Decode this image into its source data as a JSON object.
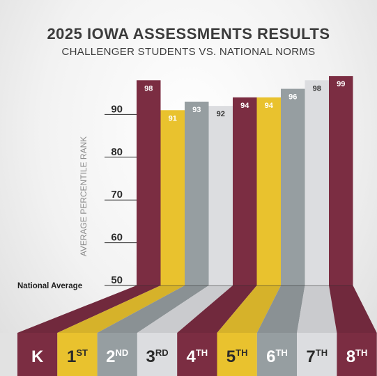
{
  "chart_data": {
    "type": "bar",
    "title": "2025 IOWA ASSESSMENTS RESULTS",
    "subtitle": "CHALLENGER STUDENTS VS. NATIONAL NORMS",
    "ylabel": "AVERAGE PERCENTILE RANK",
    "ylim": [
      50,
      100
    ],
    "yticks": [
      50,
      60,
      70,
      80,
      90
    ],
    "baseline_label": "National Average",
    "grid": true,
    "categories": [
      {
        "main": "K",
        "sup": ""
      },
      {
        "main": "1",
        "sup": "ST"
      },
      {
        "main": "2",
        "sup": "ND"
      },
      {
        "main": "3",
        "sup": "RD"
      },
      {
        "main": "4",
        "sup": "TH"
      },
      {
        "main": "5",
        "sup": "TH"
      },
      {
        "main": "6",
        "sup": "TH"
      },
      {
        "main": "7",
        "sup": "TH"
      },
      {
        "main": "8",
        "sup": "TH"
      }
    ],
    "values": [
      98,
      91,
      93,
      92,
      94,
      94,
      96,
      98,
      99
    ],
    "colors": {
      "maroon": "#7b2d42",
      "gold": "#e9c22e",
      "gray": "#969ea1",
      "light": "#dcdde0"
    },
    "bar_colors": [
      "maroon",
      "gold",
      "gray",
      "light",
      "maroon",
      "gold",
      "gray",
      "light",
      "maroon"
    ]
  }
}
